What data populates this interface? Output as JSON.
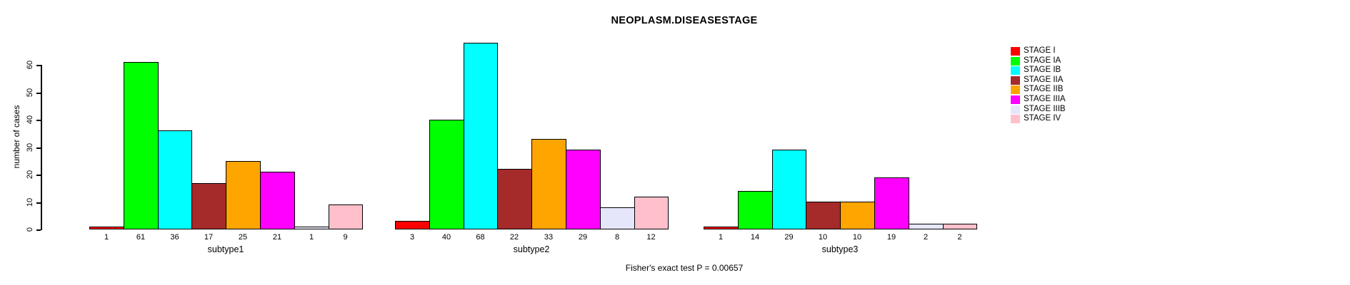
{
  "chart_data": {
    "type": "bar",
    "title": "NEOPLASM.DISEASESTAGE",
    "ylabel": "number of cases",
    "xlabel": "",
    "ylim": [
      0,
      60
    ],
    "yticks": [
      0,
      10,
      20,
      30,
      40,
      50,
      60
    ],
    "grid": false,
    "legend_position": "right",
    "categories": [
      "subtype1",
      "subtype2",
      "subtype3"
    ],
    "series": [
      {
        "name": "STAGE I",
        "color": "#FF0000",
        "values": [
          1,
          3,
          1
        ]
      },
      {
        "name": "STAGE IA",
        "color": "#00FF00",
        "values": [
          61,
          40,
          14
        ]
      },
      {
        "name": "STAGE IB",
        "color": "#00FFFF",
        "values": [
          36,
          68,
          29
        ]
      },
      {
        "name": "STAGE IIA",
        "color": "#A52A2A",
        "values": [
          17,
          22,
          10
        ]
      },
      {
        "name": "STAGE IIB",
        "color": "#FFA500",
        "values": [
          25,
          33,
          10
        ]
      },
      {
        "name": "STAGE IIIA",
        "color": "#FF00FF",
        "values": [
          21,
          29,
          19
        ]
      },
      {
        "name": "STAGE IIIB",
        "color": "#E6E6FA",
        "values": [
          1,
          8,
          2
        ]
      },
      {
        "name": "STAGE IV",
        "color": "#FFC0CB",
        "values": [
          9,
          12,
          2
        ]
      }
    ],
    "bar_value_labels_shown": true,
    "annotation": "Fisher's exact test P = 0.00657"
  }
}
